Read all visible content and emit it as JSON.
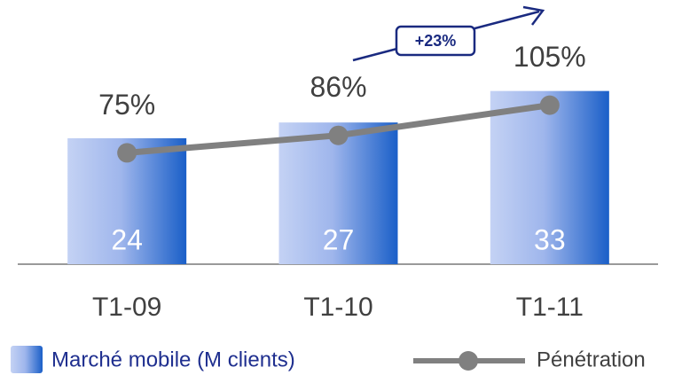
{
  "chart_data": {
    "type": "bar_line",
    "categories": [
      "T1-09",
      "T1-10",
      "T1-11"
    ],
    "series": [
      {
        "name": "Marché mobile (M clients)",
        "color": "#1a5fc8",
        "values": [
          24,
          27,
          33
        ]
      },
      {
        "name": "Pénétration",
        "color": "#808080",
        "axis": "y2",
        "values": [
          75,
          86,
          105
        ],
        "value_labels": [
          "75%",
          "86%",
          "105%"
        ]
      }
    ],
    "ylim": [
      0,
      50
    ],
    "y2lim": [
      5,
      170
    ],
    "annotations": [
      "+23%"
    ]
  }
}
